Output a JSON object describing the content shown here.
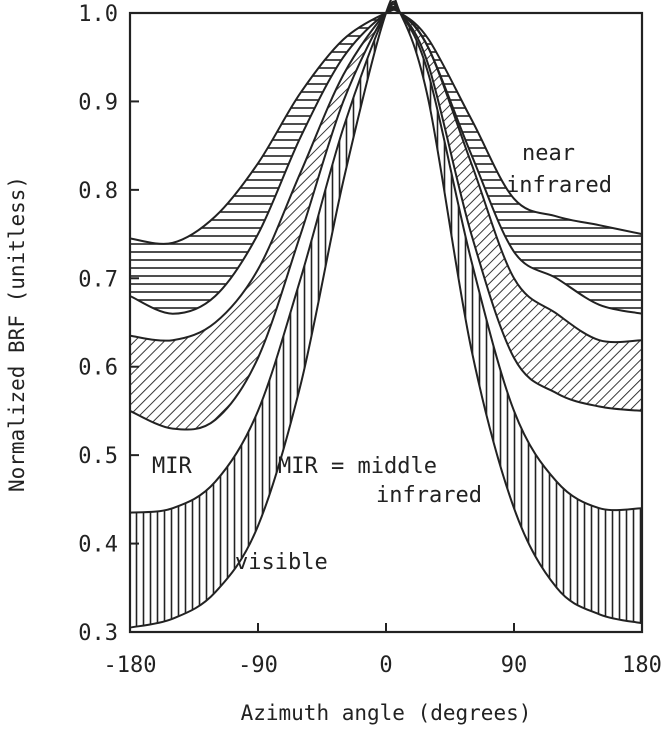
{
  "chart_data": {
    "type": "area",
    "xlabel": "Azimuth angle (degrees)",
    "ylabel": "Normalized BRF (unitless)",
    "xlim": [
      -180,
      180
    ],
    "ylim": [
      0.3,
      1.0
    ],
    "xticks": [
      -180,
      -90,
      0,
      90,
      180
    ],
    "yticks": [
      "0.3",
      "0.4",
      "0.5",
      "0.6",
      "0.7",
      "0.8",
      "0.9",
      "1.0"
    ],
    "grid": false,
    "annotations": [
      "near",
      "infrared",
      "MIR",
      "MIR = middle",
      "infrared",
      "visible"
    ],
    "series": [
      {
        "name": "near infrared",
        "pattern": "horizontal-hatch",
        "x": [
          -180,
          -150,
          -120,
          -90,
          -60,
          -30,
          0,
          10,
          30,
          60,
          90,
          120,
          150,
          180
        ],
        "upper": [
          0.745,
          0.74,
          0.77,
          0.83,
          0.91,
          0.97,
          1.0,
          1.0,
          0.97,
          0.88,
          0.79,
          0.77,
          0.76,
          0.75
        ],
        "lower": [
          0.68,
          0.66,
          0.68,
          0.75,
          0.86,
          0.95,
          1.0,
          1.0,
          0.96,
          0.84,
          0.73,
          0.7,
          0.67,
          0.66
        ]
      },
      {
        "name": "MIR",
        "pattern": "diagonal-hatch",
        "x": [
          -180,
          -150,
          -120,
          -90,
          -60,
          -30,
          0,
          10,
          30,
          60,
          90,
          120,
          150,
          180
        ],
        "upper": [
          0.635,
          0.63,
          0.65,
          0.71,
          0.82,
          0.93,
          1.0,
          1.0,
          0.96,
          0.83,
          0.7,
          0.66,
          0.63,
          0.63
        ],
        "lower": [
          0.55,
          0.53,
          0.54,
          0.61,
          0.75,
          0.9,
          1.0,
          1.0,
          0.94,
          0.75,
          0.61,
          0.57,
          0.555,
          0.55
        ]
      },
      {
        "name": "visible",
        "pattern": "vertical-hatch",
        "x": [
          -180,
          -150,
          -120,
          -90,
          -60,
          -30,
          0,
          10,
          30,
          60,
          90,
          120,
          150,
          180
        ],
        "upper": [
          0.435,
          0.44,
          0.47,
          0.55,
          0.7,
          0.87,
          1.0,
          1.0,
          0.93,
          0.72,
          0.55,
          0.47,
          0.44,
          0.44
        ],
        "lower": [
          0.305,
          0.315,
          0.345,
          0.42,
          0.58,
          0.81,
          1.0,
          1.0,
          0.9,
          0.62,
          0.44,
          0.35,
          0.32,
          0.31
        ]
      }
    ]
  }
}
